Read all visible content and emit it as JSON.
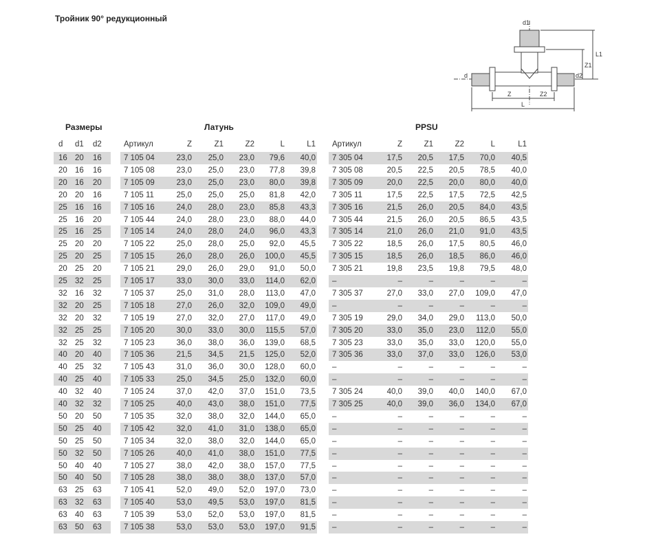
{
  "title": "Тройник 90° редукционный",
  "groups": {
    "sizes": "Размеры",
    "brass": "Латунь",
    "ppsu": "PPSU"
  },
  "columns": {
    "sizes": [
      "d",
      "d1",
      "d2"
    ],
    "brass": [
      "Артикул",
      "Z",
      "Z1",
      "Z2",
      "L",
      "L1"
    ],
    "ppsu": [
      "Артикул",
      "Z",
      "Z1",
      "Z2",
      "L",
      "L1"
    ]
  },
  "diagram_labels": {
    "d1": "d1",
    "L1": "L1",
    "Z1": "Z1",
    "d": "d",
    "d2": "d2",
    "Z": "Z",
    "Z2": "Z2",
    "L": "L"
  },
  "rows": [
    {
      "sizes": [
        "16",
        "20",
        "16"
      ],
      "brass": [
        "7 105 04",
        "23,0",
        "25,0",
        "23,0",
        "79,6",
        "40,0"
      ],
      "ppsu": [
        "7 305 04",
        "17,5",
        "20,5",
        "17,5",
        "70,0",
        "40,5"
      ]
    },
    {
      "sizes": [
        "20",
        "16",
        "16"
      ],
      "brass": [
        "7 105 08",
        "23,0",
        "25,0",
        "23,0",
        "77,8",
        "39,8"
      ],
      "ppsu": [
        "7 305 08",
        "20,5",
        "22,5",
        "20,5",
        "78,5",
        "40,0"
      ]
    },
    {
      "sizes": [
        "20",
        "16",
        "20"
      ],
      "brass": [
        "7 105 09",
        "23,0",
        "25,0",
        "23,0",
        "80,0",
        "39,8"
      ],
      "ppsu": [
        "7 305 09",
        "20,0",
        "22,5",
        "20,0",
        "80,0",
        "40,0"
      ]
    },
    {
      "sizes": [
        "20",
        "20",
        "16"
      ],
      "brass": [
        "7 105 11",
        "25,0",
        "25,0",
        "25,0",
        "81,8",
        "42,0"
      ],
      "ppsu": [
        "7 305 11",
        "17,5",
        "22,5",
        "17,5",
        "72,5",
        "42,5"
      ]
    },
    {
      "sizes": [
        "25",
        "16",
        "16"
      ],
      "brass": [
        "7 105 16",
        "24,0",
        "28,0",
        "23,0",
        "85,8",
        "43,3"
      ],
      "ppsu": [
        "7 305 16",
        "21,5",
        "26,0",
        "20,5",
        "84,0",
        "43,5"
      ]
    },
    {
      "sizes": [
        "25",
        "16",
        "20"
      ],
      "brass": [
        "7 105 44",
        "24,0",
        "28,0",
        "23,0",
        "88,0",
        "44,0"
      ],
      "ppsu": [
        "7 305 44",
        "21,5",
        "26,0",
        "20,5",
        "86,5",
        "43,5"
      ]
    },
    {
      "sizes": [
        "25",
        "16",
        "25"
      ],
      "brass": [
        "7 105 14",
        "24,0",
        "28,0",
        "24,0",
        "96,0",
        "43,3"
      ],
      "ppsu": [
        "7 305 14",
        "21,0",
        "26,0",
        "21,0",
        "91,0",
        "43,5"
      ]
    },
    {
      "sizes": [
        "25",
        "20",
        "20"
      ],
      "brass": [
        "7 105 22",
        "25,0",
        "28,0",
        "25,0",
        "92,0",
        "45,5"
      ],
      "ppsu": [
        "7 305 22",
        "18,5",
        "26,0",
        "17,5",
        "80,5",
        "46,0"
      ]
    },
    {
      "sizes": [
        "25",
        "20",
        "25"
      ],
      "brass": [
        "7 105 15",
        "26,0",
        "28,0",
        "26,0",
        "100,0",
        "45,5"
      ],
      "ppsu": [
        "7 305 15",
        "18,5",
        "26,0",
        "18,5",
        "86,0",
        "46,0"
      ]
    },
    {
      "sizes": [
        "20",
        "25",
        "20"
      ],
      "brass": [
        "7 105 21",
        "29,0",
        "26,0",
        "29,0",
        "91,0",
        "50,0"
      ],
      "ppsu": [
        "7 305 21",
        "19,8",
        "23,5",
        "19,8",
        "79,5",
        "48,0"
      ]
    },
    {
      "sizes": [
        "25",
        "32",
        "25"
      ],
      "brass": [
        "7 105 17",
        "33,0",
        "30,0",
        "33,0",
        "114,0",
        "62,0"
      ],
      "ppsu": [
        "–",
        "–",
        "–",
        "–",
        "–",
        "–"
      ]
    },
    {
      "sizes": [
        "32",
        "16",
        "32"
      ],
      "brass": [
        "7 105 37",
        "25,0",
        "31,0",
        "28,0",
        "113,0",
        "47,0"
      ],
      "ppsu": [
        "7 305 37",
        "27,0",
        "33,0",
        "27,0",
        "109,0",
        "47,0"
      ]
    },
    {
      "sizes": [
        "32",
        "20",
        "25"
      ],
      "brass": [
        "7 105 18",
        "27,0",
        "26,0",
        "32,0",
        "109,0",
        "49,0"
      ],
      "ppsu": [
        "–",
        "–",
        "–",
        "–",
        "–",
        "–"
      ]
    },
    {
      "sizes": [
        "32",
        "20",
        "32"
      ],
      "brass": [
        "7 105 19",
        "27,0",
        "32,0",
        "27,0",
        "117,0",
        "49,0"
      ],
      "ppsu": [
        "7 305 19",
        "29,0",
        "34,0",
        "29,0",
        "113,0",
        "50,0"
      ]
    },
    {
      "sizes": [
        "32",
        "25",
        "25"
      ],
      "brass": [
        "7 105 20",
        "30,0",
        "33,0",
        "30,0",
        "115,5",
        "57,0"
      ],
      "ppsu": [
        "7 305 20",
        "33,0",
        "35,0",
        "23,0",
        "112,0",
        "55,0"
      ]
    },
    {
      "sizes": [
        "32",
        "25",
        "32"
      ],
      "brass": [
        "7 105 23",
        "36,0",
        "38,0",
        "36,0",
        "139,0",
        "68,5"
      ],
      "ppsu": [
        "7 305 23",
        "33,0",
        "35,0",
        "33,0",
        "120,0",
        "55,0"
      ]
    },
    {
      "sizes": [
        "40",
        "20",
        "40"
      ],
      "brass": [
        "7 105 36",
        "21,5",
        "34,5",
        "21,5",
        "125,0",
        "52,0"
      ],
      "ppsu": [
        "7 305 36",
        "33,0",
        "37,0",
        "33,0",
        "126,0",
        "53,0"
      ]
    },
    {
      "sizes": [
        "40",
        "25",
        "32"
      ],
      "brass": [
        "7 105 43",
        "31,0",
        "36,0",
        "30,0",
        "128,0",
        "60,0"
      ],
      "ppsu": [
        "–",
        "–",
        "–",
        "–",
        "–",
        "–"
      ]
    },
    {
      "sizes": [
        "40",
        "25",
        "40"
      ],
      "brass": [
        "7 105 33",
        "25,0",
        "34,5",
        "25,0",
        "132,0",
        "60,0"
      ],
      "ppsu": [
        "–",
        "–",
        "–",
        "–",
        "–",
        "–"
      ]
    },
    {
      "sizes": [
        "40",
        "32",
        "40"
      ],
      "brass": [
        "7 105 24",
        "37,0",
        "42,0",
        "37,0",
        "151,0",
        "73,5"
      ],
      "ppsu": [
        "7 305 24",
        "40,0",
        "39,0",
        "40,0",
        "140,0",
        "67,0"
      ]
    },
    {
      "sizes": [
        "40",
        "32",
        "32"
      ],
      "brass": [
        "7 105 25",
        "40,0",
        "43,0",
        "38,0",
        "151,0",
        "77,5"
      ],
      "ppsu": [
        "7 305 25",
        "40,0",
        "39,0",
        "36,0",
        "134,0",
        "67,0"
      ]
    },
    {
      "sizes": [
        "50",
        "20",
        "50"
      ],
      "brass": [
        "7 105 35",
        "32,0",
        "38,0",
        "32,0",
        "144,0",
        "65,0"
      ],
      "ppsu": [
        "–",
        "–",
        "–",
        "–",
        "–",
        "–"
      ]
    },
    {
      "sizes": [
        "50",
        "25",
        "40"
      ],
      "brass": [
        "7 105 42",
        "32,0",
        "41,0",
        "31,0",
        "138,0",
        "65,0"
      ],
      "ppsu": [
        "–",
        "–",
        "–",
        "–",
        "–",
        "–"
      ]
    },
    {
      "sizes": [
        "50",
        "25",
        "50"
      ],
      "brass": [
        "7 105 34",
        "32,0",
        "38,0",
        "32,0",
        "144,0",
        "65,0"
      ],
      "ppsu": [
        "–",
        "–",
        "–",
        "–",
        "–",
        "–"
      ]
    },
    {
      "sizes": [
        "50",
        "32",
        "50"
      ],
      "brass": [
        "7 105 26",
        "40,0",
        "41,0",
        "38,0",
        "151,0",
        "77,5"
      ],
      "ppsu": [
        "–",
        "–",
        "–",
        "–",
        "–",
        "–"
      ]
    },
    {
      "sizes": [
        "50",
        "40",
        "40"
      ],
      "brass": [
        "7 105 27",
        "38,0",
        "42,0",
        "38,0",
        "157,0",
        "77,5"
      ],
      "ppsu": [
        "–",
        "–",
        "–",
        "–",
        "–",
        "–"
      ]
    },
    {
      "sizes": [
        "50",
        "40",
        "50"
      ],
      "brass": [
        "7 105 28",
        "38,0",
        "38,0",
        "38,0",
        "137,0",
        "57,0"
      ],
      "ppsu": [
        "–",
        "–",
        "–",
        "–",
        "–",
        "–"
      ]
    },
    {
      "sizes": [
        "63",
        "25",
        "63"
      ],
      "brass": [
        "7 105 41",
        "52,0",
        "49,0",
        "52,0",
        "197,0",
        "73,0"
      ],
      "ppsu": [
        "–",
        "–",
        "–",
        "–",
        "–",
        "–"
      ]
    },
    {
      "sizes": [
        "63",
        "32",
        "63"
      ],
      "brass": [
        "7 105 40",
        "53,0",
        "49,5",
        "53,0",
        "197,0",
        "81,5"
      ],
      "ppsu": [
        "–",
        "–",
        "–",
        "–",
        "–",
        "–"
      ]
    },
    {
      "sizes": [
        "63",
        "40",
        "63"
      ],
      "brass": [
        "7 105 39",
        "53,0",
        "52,0",
        "53,0",
        "197,0",
        "81,5"
      ],
      "ppsu": [
        "–",
        "–",
        "–",
        "–",
        "–",
        "–"
      ]
    },
    {
      "sizes": [
        "63",
        "50",
        "63"
      ],
      "brass": [
        "7 105 38",
        "53,0",
        "53,0",
        "53,0",
        "197,0",
        "91,5"
      ],
      "ppsu": [
        "–",
        "–",
        "–",
        "–",
        "–",
        "–"
      ]
    }
  ]
}
